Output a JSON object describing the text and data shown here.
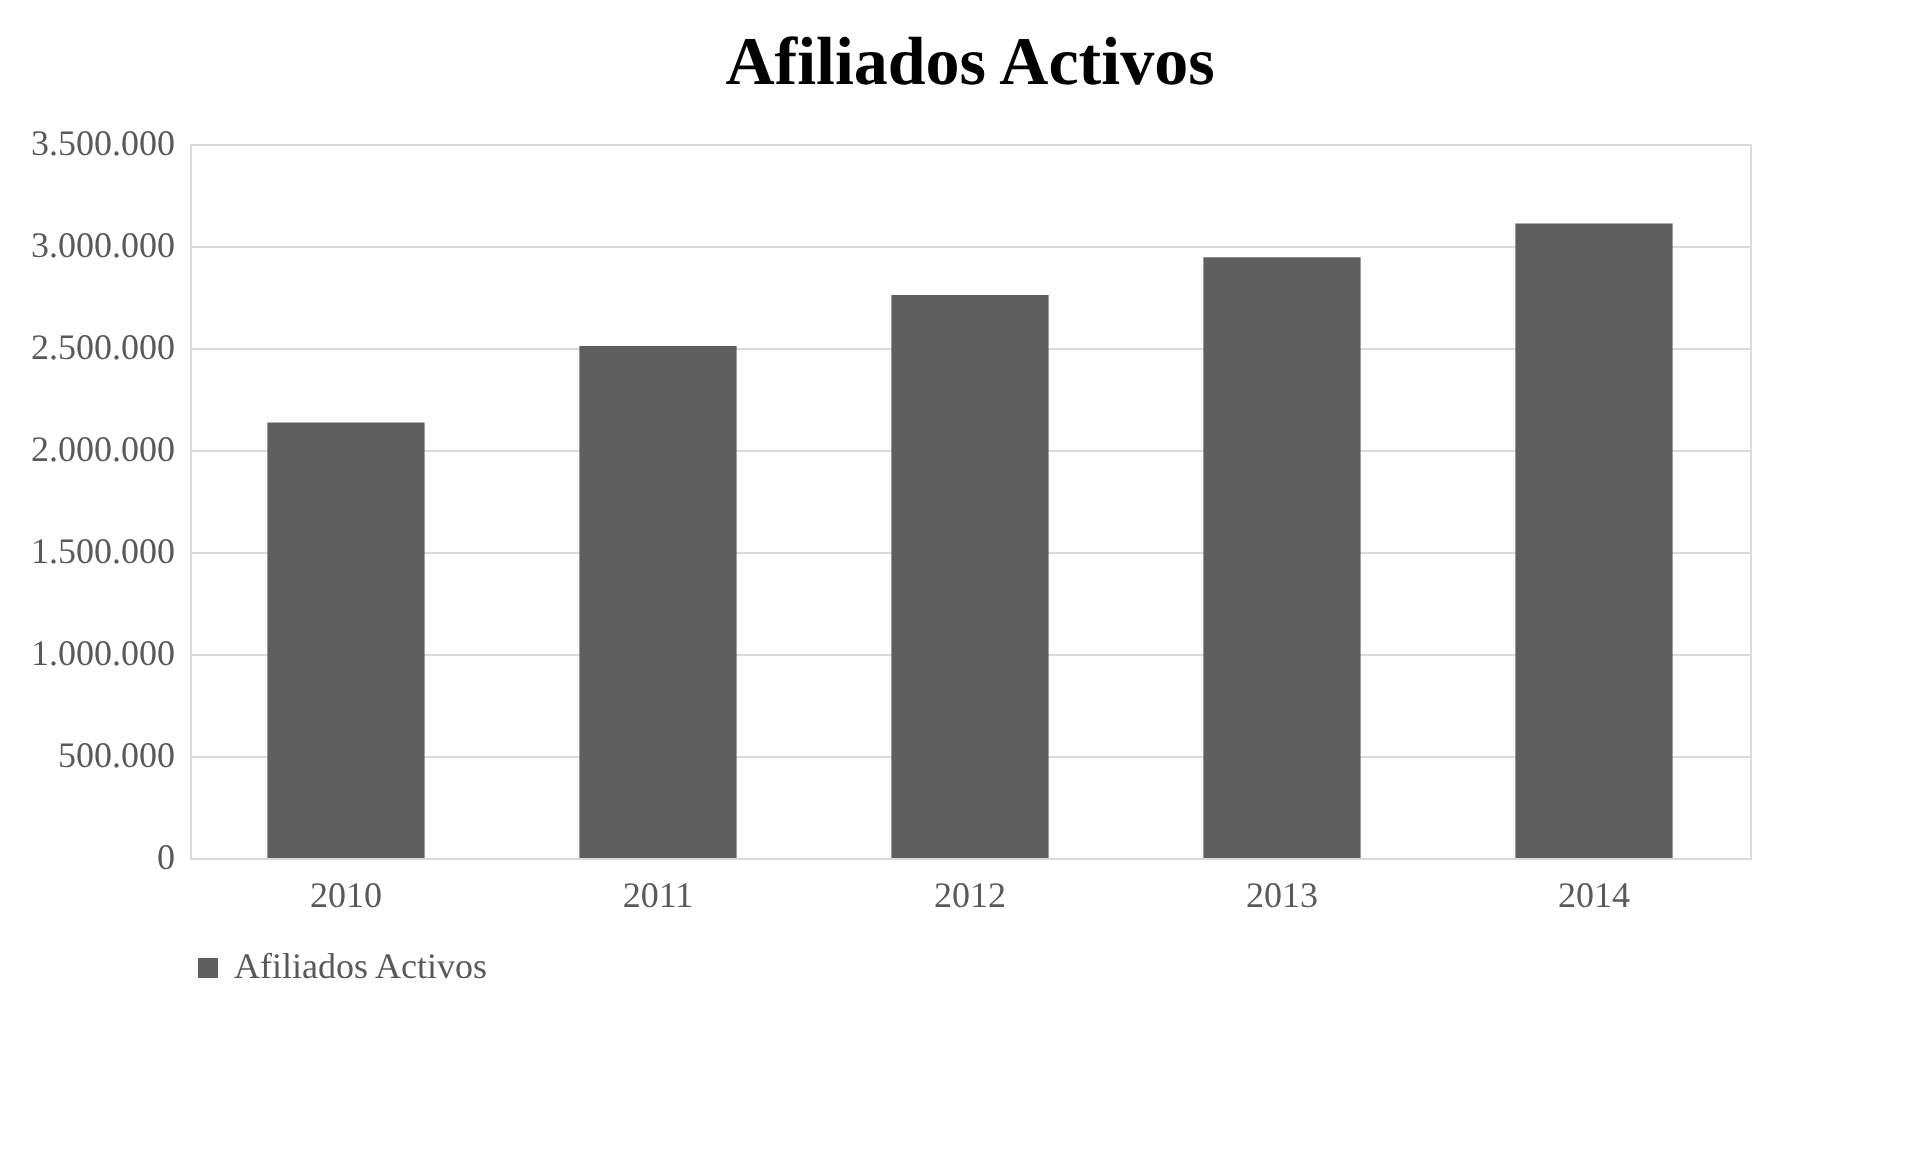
{
  "chart_data": {
    "type": "bar",
    "title": "Afiliados Activos",
    "categories": [
      "2010",
      "2011",
      "2012",
      "2013",
      "2014"
    ],
    "series": [
      {
        "name": "Afiliados Activos",
        "color": "#5f5f5f",
        "values": [
          2135000,
          2510000,
          2760000,
          2945000,
          3110000
        ]
      }
    ],
    "ylim": [
      0,
      3500000
    ],
    "yticks": [
      0,
      {
        "value": 500000,
        "label": "500.000"
      },
      {
        "value": 1000000,
        "label": "1.000.000"
      },
      {
        "value": 1500000,
        "label": "1.500.000"
      },
      {
        "value": 2000000,
        "label": "2.000.000"
      },
      {
        "value": 2500000,
        "label": "2.500.000"
      },
      {
        "value": 3000000,
        "label": "3.000.000"
      },
      {
        "value": 3500000,
        "label": "3.500.000"
      }
    ],
    "grid": "y",
    "legend": "bottom"
  }
}
